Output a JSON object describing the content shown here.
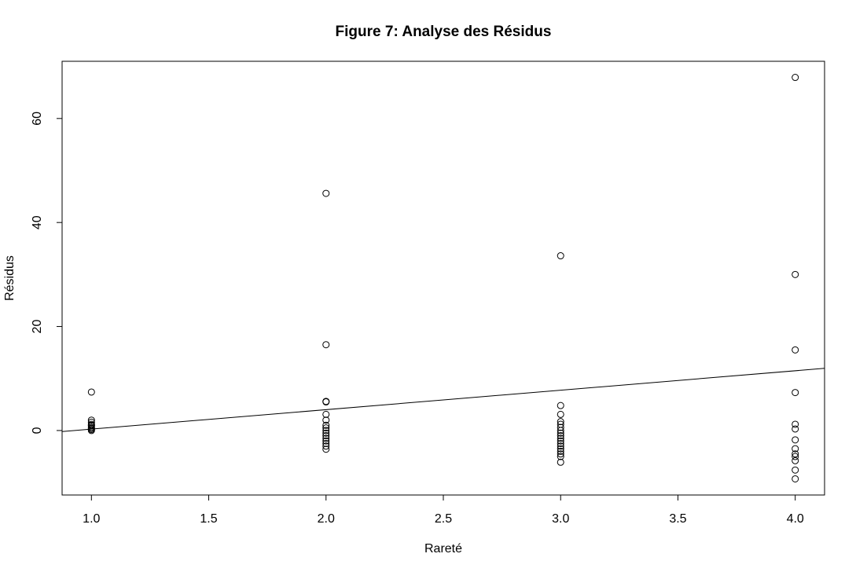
{
  "chart_data": {
    "type": "scatter",
    "title": "Figure 7: Analyse des Résidus",
    "xlabel": "Rareté",
    "ylabel": "Résidus",
    "xlim": [
      0.875,
      4.125
    ],
    "ylim": [
      -12.4,
      71.0
    ],
    "x_ticks": [
      "1.0",
      "1.5",
      "2.0",
      "2.5",
      "3.0",
      "3.5",
      "4.0"
    ],
    "y_ticks": [
      "0",
      "20",
      "40",
      "60"
    ],
    "grid": false,
    "legend": "none",
    "colors": {
      "points": "#000000",
      "line": "#000000",
      "frame": "#000000"
    },
    "points": [
      {
        "x": 1,
        "y": 7.4
      },
      {
        "x": 1,
        "y": 2.0
      },
      {
        "x": 1,
        "y": 1.6
      },
      {
        "x": 1,
        "y": 1.2
      },
      {
        "x": 1,
        "y": 0.9
      },
      {
        "x": 1,
        "y": 0.6
      },
      {
        "x": 1,
        "y": 0.4
      },
      {
        "x": 1,
        "y": 0.2
      },
      {
        "x": 1,
        "y": 0.0
      },
      {
        "x": 1,
        "y": 1.0
      },
      {
        "x": 2,
        "y": 45.6
      },
      {
        "x": 2,
        "y": 16.5
      },
      {
        "x": 2,
        "y": 5.6
      },
      {
        "x": 2,
        "y": 5.5
      },
      {
        "x": 2,
        "y": 3.1
      },
      {
        "x": 2,
        "y": 2.0
      },
      {
        "x": 2,
        "y": 1.0
      },
      {
        "x": 2,
        "y": 0.5
      },
      {
        "x": 2,
        "y": 0.0
      },
      {
        "x": 2,
        "y": -0.5
      },
      {
        "x": 2,
        "y": -1.0
      },
      {
        "x": 2,
        "y": -1.5
      },
      {
        "x": 2,
        "y": -2.0
      },
      {
        "x": 2,
        "y": -2.5
      },
      {
        "x": 2,
        "y": -3.0
      },
      {
        "x": 2,
        "y": -3.6
      },
      {
        "x": 3,
        "y": 33.6
      },
      {
        "x": 3,
        "y": 4.8
      },
      {
        "x": 3,
        "y": 3.1
      },
      {
        "x": 3,
        "y": 1.7
      },
      {
        "x": 3,
        "y": 1.2
      },
      {
        "x": 3,
        "y": 0.6
      },
      {
        "x": 3,
        "y": 0.0
      },
      {
        "x": 3,
        "y": -0.5
      },
      {
        "x": 3,
        "y": -1.0
      },
      {
        "x": 3,
        "y": -1.5
      },
      {
        "x": 3,
        "y": -2.0
      },
      {
        "x": 3,
        "y": -2.5
      },
      {
        "x": 3,
        "y": -3.0
      },
      {
        "x": 3,
        "y": -3.5
      },
      {
        "x": 3,
        "y": -4.0
      },
      {
        "x": 3,
        "y": -4.5
      },
      {
        "x": 3,
        "y": -5.0
      },
      {
        "x": 3,
        "y": -6.1
      },
      {
        "x": 4,
        "y": 67.9
      },
      {
        "x": 4,
        "y": 30.0
      },
      {
        "x": 4,
        "y": 15.5
      },
      {
        "x": 4,
        "y": 7.3
      },
      {
        "x": 4,
        "y": 1.2
      },
      {
        "x": 4,
        "y": 0.3
      },
      {
        "x": 4,
        "y": -1.8
      },
      {
        "x": 4,
        "y": -3.5
      },
      {
        "x": 4,
        "y": -4.5
      },
      {
        "x": 4,
        "y": -5.0
      },
      {
        "x": 4,
        "y": -5.8
      },
      {
        "x": 4,
        "y": -7.6
      },
      {
        "x": 4,
        "y": -9.3
      }
    ],
    "fit_line": {
      "intercept": -3.47,
      "slope": 3.74
    }
  }
}
